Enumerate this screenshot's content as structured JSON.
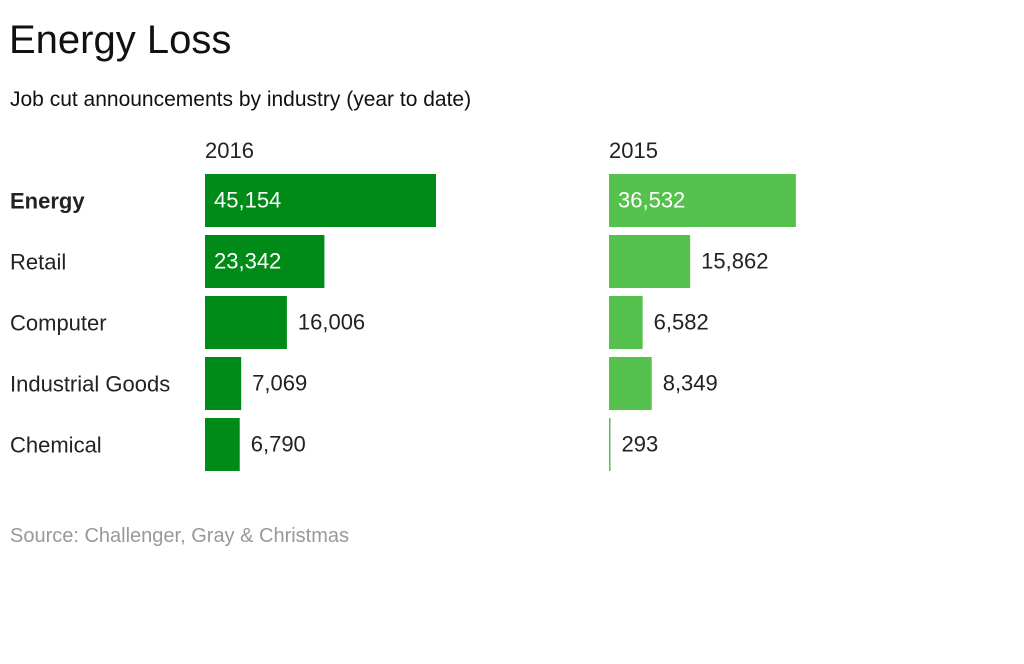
{
  "title": "Energy Loss",
  "subtitle": "Job cut announcements by industry (year to date)",
  "source": "Source: Challenger, Gray & Christmas",
  "colors": {
    "bar_2016": "#008a17",
    "bar_2015": "#55c24d",
    "label_inside": "#ffffff",
    "label_outside": "#222222"
  },
  "chart_data": {
    "type": "bar",
    "orientation": "horizontal",
    "categories": [
      "Energy",
      "Retail",
      "Computer",
      "Industrial Goods",
      "Chemical"
    ],
    "highlight_category": "Energy",
    "series": [
      {
        "name": "2016",
        "values": [
          45154,
          23342,
          16006,
          7069,
          6790
        ],
        "labels": [
          "45,154",
          "23,342",
          "16,006",
          "7,069",
          "6,790"
        ]
      },
      {
        "name": "2015",
        "values": [
          36532,
          15862,
          6582,
          8349,
          293
        ],
        "labels": [
          "36,532",
          "15,862",
          "6,582",
          "8,349",
          "293"
        ]
      }
    ],
    "xlim": [
      0,
      45154
    ],
    "grid": false,
    "legend": "none"
  }
}
